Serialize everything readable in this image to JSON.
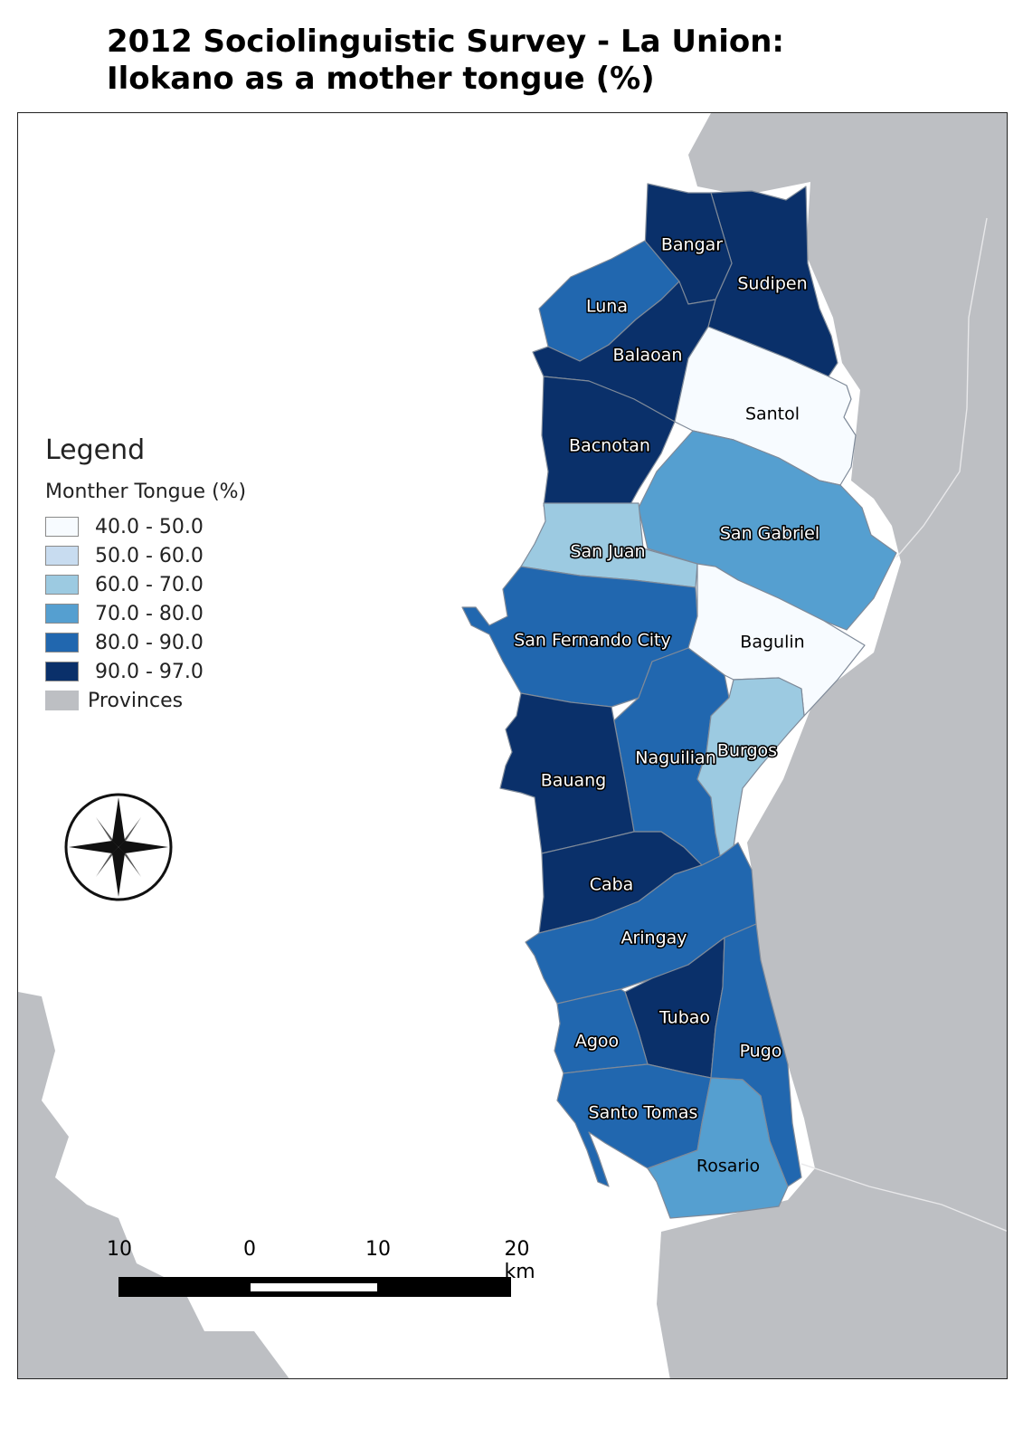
{
  "title": {
    "line1": "2012 Sociolinguistic Survey - La Union:",
    "line2": "Ilokano as a mother tongue (%)"
  },
  "legend": {
    "title": "Legend",
    "subtitle": "Monther Tongue (%)",
    "classes": [
      {
        "label": "40.0 - 50.0",
        "color": "#f7fbff"
      },
      {
        "label": "50.0 - 60.0",
        "color": "#c8dcf0"
      },
      {
        "label": "60.0 - 70.0",
        "color": "#9ccae1"
      },
      {
        "label": "70.0 - 80.0",
        "color": "#559fd0"
      },
      {
        "label": "80.0 - 90.0",
        "color": "#2167af"
      },
      {
        "label": "90.0 - 97.0",
        "color": "#0a306a"
      }
    ],
    "provinces": {
      "label": "Provinces",
      "color": "#bdbfc3"
    }
  },
  "municipalities": [
    {
      "name": "Bangar",
      "class": "90.0 - 97.0"
    },
    {
      "name": "Sudipen",
      "class": "90.0 - 97.0"
    },
    {
      "name": "Luna",
      "class": "80.0 - 90.0"
    },
    {
      "name": "Balaoan",
      "class": "90.0 - 97.0"
    },
    {
      "name": "Santol",
      "class": "40.0 - 50.0"
    },
    {
      "name": "Bacnotan",
      "class": "90.0 - 97.0"
    },
    {
      "name": "San Gabriel",
      "class": "70.0 - 80.0"
    },
    {
      "name": "San Juan",
      "class": "60.0 - 70.0"
    },
    {
      "name": "San Fernando City",
      "class": "80.0 - 90.0"
    },
    {
      "name": "Bagulin",
      "class": "40.0 - 50.0"
    },
    {
      "name": "Naguilian",
      "class": "80.0 - 90.0"
    },
    {
      "name": "Burgos",
      "class": "60.0 - 70.0"
    },
    {
      "name": "Bauang",
      "class": "90.0 - 97.0"
    },
    {
      "name": "Caba",
      "class": "90.0 - 97.0"
    },
    {
      "name": "Aringay",
      "class": "80.0 - 90.0"
    },
    {
      "name": "Tubao",
      "class": "90.0 - 97.0"
    },
    {
      "name": "Agoo",
      "class": "80.0 - 90.0"
    },
    {
      "name": "Pugo",
      "class": "80.0 - 90.0"
    },
    {
      "name": "Santo Tomas",
      "class": "80.0 - 90.0"
    },
    {
      "name": "Rosario",
      "class": "70.0 - 80.0"
    }
  ],
  "scalebar": {
    "ticks": [
      "10",
      "0",
      "10",
      "20 km"
    ]
  },
  "north_arrow_icon": "compass-rose-icon",
  "colors": {
    "provinces": "#bdbfc3",
    "boundary": "#8d97a6",
    "frame": "#222222"
  }
}
